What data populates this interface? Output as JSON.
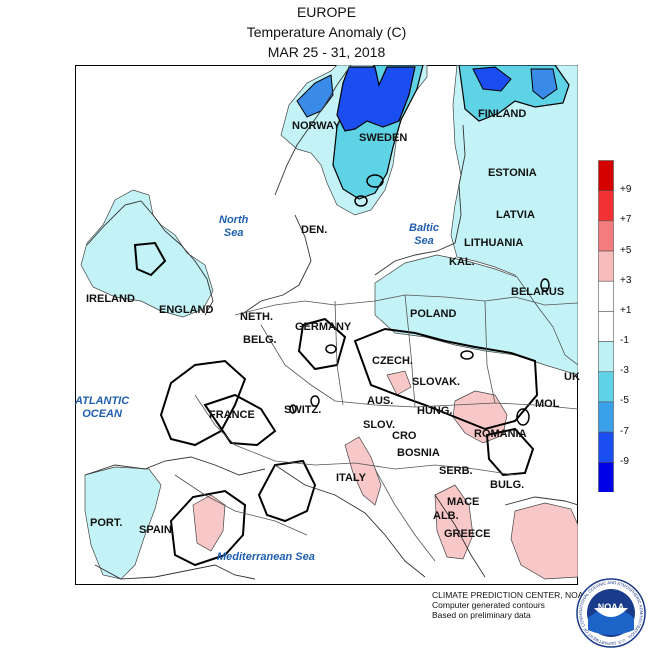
{
  "header": {
    "region": "EUROPE",
    "variable": "Temperature Anomaly (C)",
    "period": "MAR 25 - 31, 2018"
  },
  "legend": {
    "labels": [
      "+9",
      "+7",
      "+5",
      "+3",
      "+1",
      "-1",
      "-3",
      "-5",
      "-7",
      "-9"
    ],
    "colors": [
      "#d40000",
      "#f23232",
      "#f47c7c",
      "#f8bcbc",
      "#ffffff",
      "#ffffff",
      "#bdf2f5",
      "#5fd3e6",
      "#3aa0ea",
      "#1a4ef0",
      "#0000e6"
    ]
  },
  "fill_colors": {
    "cold_1": "#c3f3f6",
    "cold_2": "#5fd3e6",
    "cold_3": "#3a8ae8",
    "cold_4": "#1a4ef0",
    "warm_1": "#f8c8c8",
    "sea": "#ffffff",
    "land_line": "#444444"
  },
  "countries": {
    "norway": "NORWAY",
    "sweden": "SWEDEN",
    "finland": "FINLAND",
    "estonia": "ESTONIA",
    "latvia": "LATVIA",
    "lithuania": "LITHUANIA",
    "den": "DEN.",
    "kal": "KAL.",
    "belarus": "BELARUS",
    "ireland": "IRELAND",
    "england": "ENGLAND",
    "neth": "NETH.",
    "belg": "BELG.",
    "germany": "GERMANY",
    "poland": "POLAND",
    "czech": "CZECH.",
    "slovak": "SLOVAK.",
    "uk": "UK",
    "france": "FRANCE",
    "switz": "SWITZ.",
    "aus": "AUS.",
    "hung": "HUNG.",
    "mol": "MOL",
    "slov": "SLOV.",
    "cro": "CRO",
    "romania": "ROMANIA",
    "bosnia": "BOSNIA",
    "serb": "SERB.",
    "italy": "ITALY",
    "bulg": "BULG.",
    "port": "PORT.",
    "spain": "SPAIN",
    "mace": "MACE",
    "alb": "ALB.",
    "greece": "GREECE"
  },
  "seas": {
    "north_sea_1": "North",
    "north_sea_2": "Sea",
    "baltic_sea_1": "Baltic",
    "baltic_sea_2": "Sea",
    "atlantic_1": "ATLANTIC",
    "atlantic_2": "OCEAN",
    "mediterranean": "Mediterranean Sea"
  },
  "credits": {
    "line1": "CLIMATE PREDICTION CENTER, NOAA",
    "line2": "Computer generated contours",
    "line3": "Based on preliminary data"
  },
  "logo": {
    "text": "NOAA",
    "ring": "NATIONAL OCEANIC AND ATMOSPHERIC ADMINISTRATION · U.S. DEPARTMENT OF COMMERCE"
  }
}
